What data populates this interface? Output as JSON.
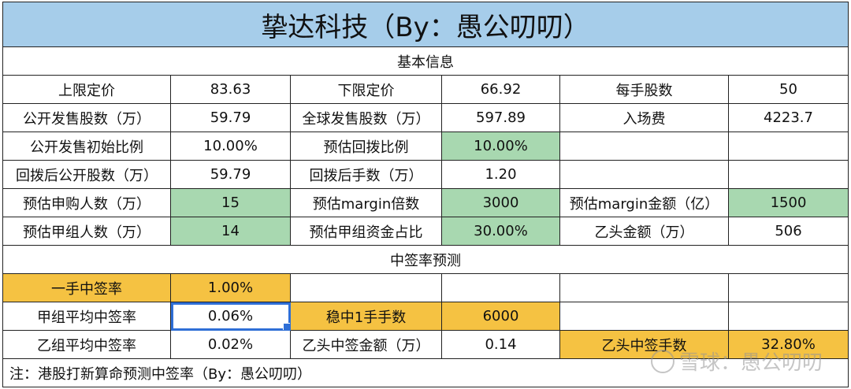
{
  "title": "挚达科技（By：愚公叨叨）",
  "section_basic": "基本信息",
  "section_predict": "中签率预测",
  "rows": [
    [
      "上限定价",
      "83.63",
      "下限定价",
      "66.92",
      "每手股数",
      "50"
    ],
    [
      "公开发售股数（万）",
      "59.79",
      "全球发售股数（万）",
      "597.89",
      "入场费",
      "4223.7"
    ],
    [
      "公开发售初始比例",
      "10.00%",
      "预估回拨比例",
      "10.00%",
      "",
      ""
    ],
    [
      "回拨后公开股数（万）",
      "59.79",
      "回拨后手数（万）",
      "1.20",
      "",
      ""
    ],
    [
      "预估申购人数（万）",
      "15",
      "预估margin倍数",
      "3000",
      "预估margin金额（亿）",
      "1500"
    ],
    [
      "预估甲组人数（万）",
      "14",
      "预估甲组资金占比",
      "30.00%",
      "乙头金额（万）",
      "506"
    ]
  ],
  "predict_rows": [
    [
      "一手中签率",
      "1.00%",
      "",
      "",
      "",
      ""
    ],
    [
      "甲组平均中签率",
      "0.06%",
      "稳中1手手数",
      "6000",
      "",
      ""
    ],
    [
      "乙组平均中签率",
      "0.02%",
      "乙头中签金额（万）",
      "0.14",
      "乙头中签手数",
      "32.80%"
    ]
  ],
  "note": "注：港股打新算命预测中签率（By：愚公叨叨）",
  "watermark": "雪球：愚公叨叨",
  "colors": {
    "title_bg": "#a6cdea",
    "green": "#a8d8b0",
    "orange": "#f5c242",
    "selection": "#2f6fd6"
  }
}
